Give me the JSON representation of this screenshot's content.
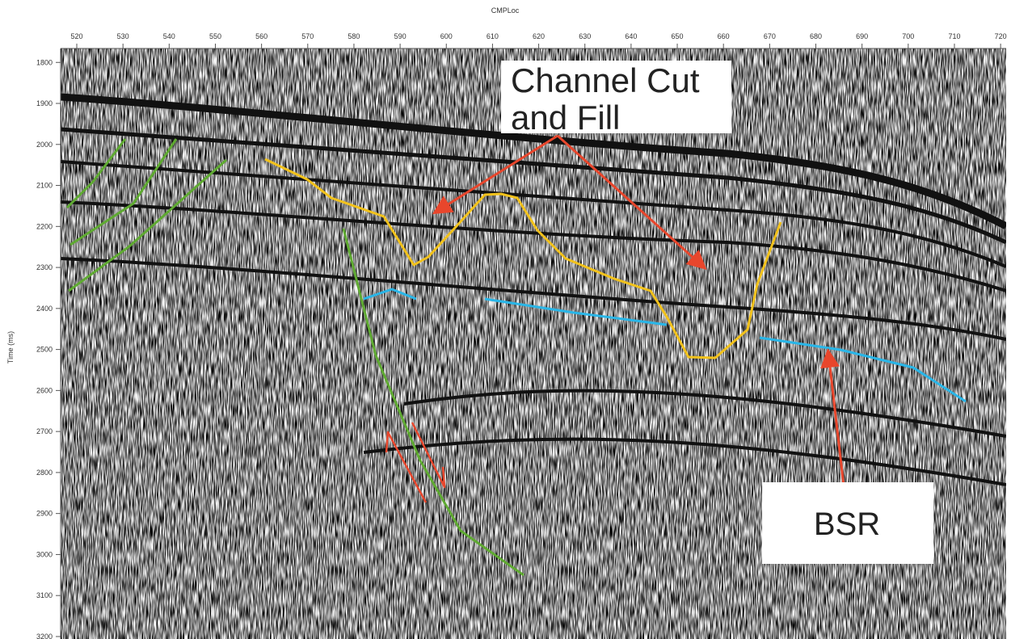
{
  "chart_data": {
    "type": "seismic-section",
    "x_label": "CMPLoc",
    "y_label": "Time (ms)",
    "xlim": [
      516.5,
      721.2
    ],
    "xticks": [
      520,
      530,
      540,
      550,
      560,
      570,
      580,
      590,
      600,
      610,
      620,
      630,
      640,
      650,
      660,
      670,
      680,
      690,
      700,
      710,
      720
    ],
    "ylim": [
      1766,
      3206
    ],
    "yticks": [
      1800,
      1900,
      2000,
      2100,
      2200,
      2300,
      2400,
      2500,
      2600,
      2700,
      2800,
      2900,
      3000,
      3100,
      3200
    ],
    "annotations": {
      "channel": [
        "Channel Cut",
        "and Fill"
      ],
      "bsr": "BSR"
    }
  }
}
